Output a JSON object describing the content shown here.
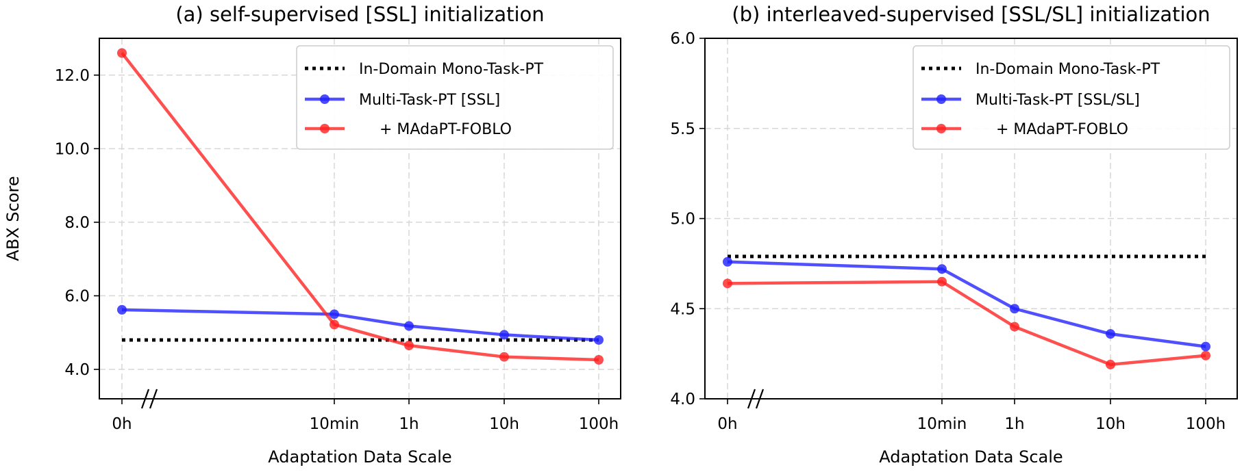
{
  "chart_data": [
    {
      "type": "line",
      "title": "(a) self-supervised [SSL] initialization",
      "xlabel": "Adaptation Data Scale",
      "ylabel": "ABX Score",
      "categories": [
        "0h",
        "10min",
        "1h",
        "10h",
        "100h"
      ],
      "ylim": [
        3.2,
        13.0
      ],
      "yticks": [
        4.0,
        6.0,
        8.0,
        10.0,
        12.0
      ],
      "ytick_labels": [
        "4.0",
        "6.0",
        "8.0",
        "10.0",
        "12.0"
      ],
      "grid": true,
      "axis_break": "//",
      "legend_position": "top-right",
      "reference": {
        "name": "In-Domain Mono-Task-PT",
        "value": 4.8,
        "style": "dotted",
        "color": "#000000"
      },
      "series": [
        {
          "name": "Multi-Task-PT [SSL]",
          "color": "#1f1fff",
          "values": [
            5.62,
            5.5,
            5.18,
            4.94,
            4.8
          ]
        },
        {
          "name": "+ MAdaPT-FOBLO",
          "color": "#ff1f1f",
          "values": [
            12.6,
            5.22,
            4.65,
            4.34,
            4.26
          ]
        }
      ]
    },
    {
      "type": "line",
      "title": "(b) interleaved-supervised [SSL/SL] initialization",
      "xlabel": "Adaptation Data Scale",
      "ylabel": "",
      "categories": [
        "0h",
        "10min",
        "1h",
        "10h",
        "100h"
      ],
      "ylim": [
        4.0,
        6.0
      ],
      "yticks": [
        4.0,
        4.5,
        5.0,
        5.5,
        6.0
      ],
      "ytick_labels": [
        "4.0",
        "4.5",
        "5.0",
        "5.5",
        "6.0"
      ],
      "grid": true,
      "axis_break": "//",
      "legend_position": "top-right",
      "reference": {
        "name": "In-Domain Mono-Task-PT",
        "value": 4.79,
        "style": "dotted",
        "color": "#000000"
      },
      "series": [
        {
          "name": "Multi-Task-PT [SSL/SL]",
          "color": "#1f1fff",
          "values": [
            4.76,
            4.72,
            4.5,
            4.36,
            4.29
          ]
        },
        {
          "name": "+ MAdaPT-FOBLO",
          "color": "#ff1f1f",
          "values": [
            4.64,
            4.65,
            4.4,
            4.19,
            4.24
          ]
        }
      ]
    }
  ]
}
